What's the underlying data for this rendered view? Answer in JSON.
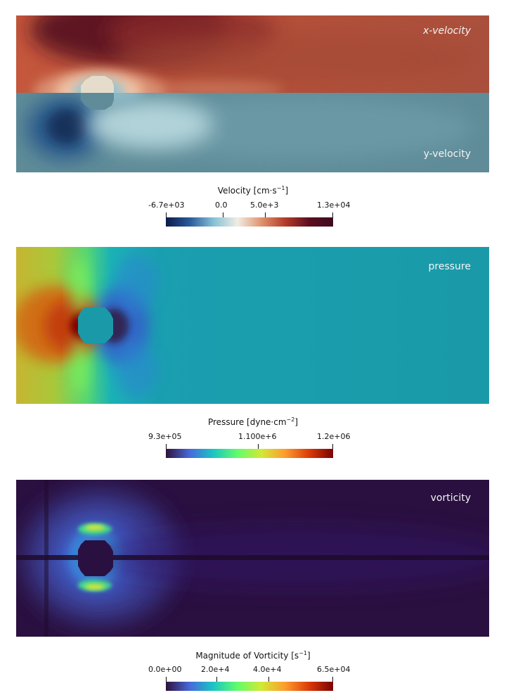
{
  "panels": {
    "velocity": {
      "top_label": "x-velocity",
      "bottom_label": "y-velocity"
    },
    "pressure": {
      "label": "pressure"
    },
    "vorticity": {
      "label": "vorticity"
    }
  },
  "colorbars": {
    "velocity": {
      "title_prefix": "Velocity [cm·s",
      "title_sup": "−1",
      "title_suffix": "]",
      "ticks": [
        "-6.7e+03",
        "0.0",
        "5.0e+3",
        "1.3e+04"
      ],
      "colormap": [
        "#0b1a4a",
        "#2a5a9a",
        "#86c2d6",
        "#f0ede4",
        "#e0936d",
        "#b23b2a",
        "#5c0d1e",
        "#3d0a20"
      ]
    },
    "pressure": {
      "title_prefix": "Pressure [dyne·cm",
      "title_sup": "−2",
      "title_suffix": "]",
      "ticks": [
        "9.3e+05",
        "1.100e+6",
        "1.2e+06"
      ],
      "colormap": [
        "#30123b",
        "#4669db",
        "#1ac7c2",
        "#62fc6b",
        "#d2e935",
        "#fe9b2d",
        "#db3a07",
        "#7a0403"
      ]
    },
    "vorticity": {
      "title_prefix": "Magnitude of Vorticity [s",
      "title_sup": "−1",
      "title_suffix": "]",
      "ticks": [
        "0.0e+00",
        "2.0e+4",
        "4.0e+4",
        "6.5e+04"
      ],
      "colormap": [
        "#30123b",
        "#4669db",
        "#1ac7c2",
        "#62fc6b",
        "#d2e935",
        "#fe9b2d",
        "#db3a07",
        "#7a0403"
      ]
    }
  }
}
